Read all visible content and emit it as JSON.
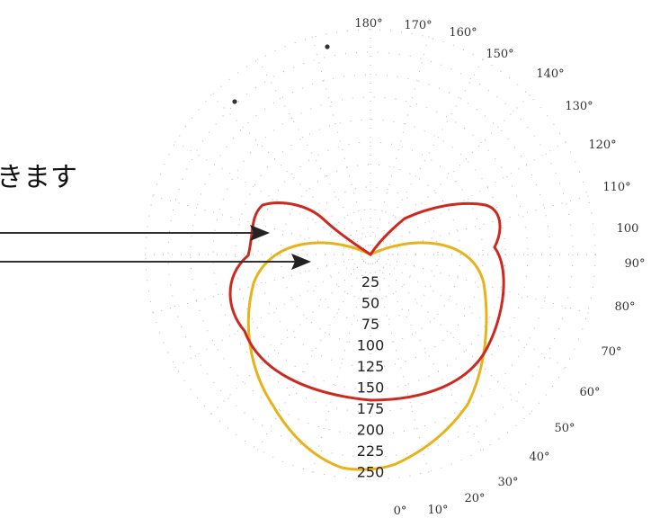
{
  "fragment_text": "きます",
  "angle_labels": [
    "0°",
    "10°",
    "20°",
    "30°",
    "40°",
    "50°",
    "60°",
    "70°",
    "80°",
    "90°",
    "100",
    "110°",
    "120°",
    "130°",
    "140°",
    "150°",
    "160°",
    "170°",
    "180°"
  ],
  "radial_labels": [
    "25",
    "50",
    "75",
    "100",
    "125",
    "150",
    "175",
    "200",
    "225",
    "250"
  ],
  "colors": {
    "red_curve": "#cc2a1e",
    "yellow_curve": "#e8b21a",
    "arrow": "#333333",
    "grid_dots": "#b5b5b5"
  }
}
